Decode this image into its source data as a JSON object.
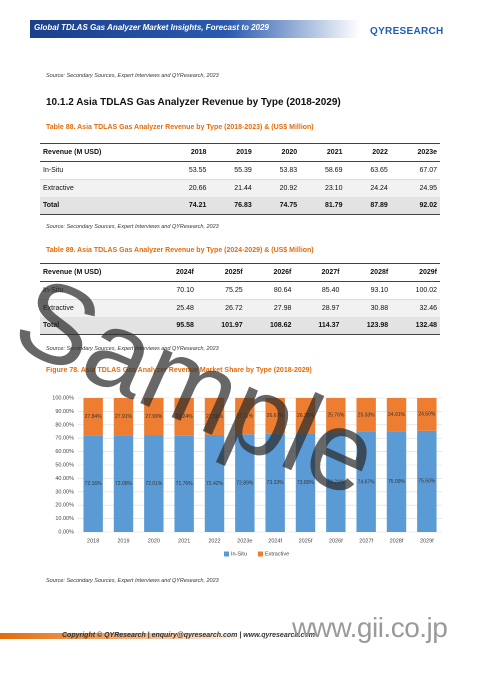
{
  "header": {
    "title": "Global TDLAS Gas Analyzer Market Insights, Forecast to 2029",
    "logo": "QYRESEARCH"
  },
  "sources": [
    "Source: Secondary Sources, Expert Interviews and QYResearch, 2023",
    "Source: Secondary Sources, Expert Interviews and QYResearch, 2023",
    "Source: Secondary Sources, Expert Interviews and QYResearch, 2023",
    "Source: Secondary Sources, Expert Interviews and QYResearch, 2023"
  ],
  "section_heading": "10.1.2  Asia TDLAS Gas Analyzer Revenue by Type (2018-2029)",
  "tables": [
    {
      "caption": "Table 88.   Asia TDLAS Gas Analyzer Revenue by Type (2018-2023) & (US$ Million)",
      "header": [
        "Revenue (M USD)",
        "2018",
        "2019",
        "2020",
        "2021",
        "2022",
        "2023e"
      ],
      "rows": [
        [
          "In-Situ",
          "53.55",
          "55.39",
          "53.83",
          "58.69",
          "63.65",
          "67.07"
        ],
        [
          "Extractive",
          "20.66",
          "21.44",
          "20.92",
          "23.10",
          "24.24",
          "24.95"
        ],
        [
          "Total",
          "74.21",
          "76.83",
          "74.75",
          "81.79",
          "87.89",
          "92.02"
        ]
      ]
    },
    {
      "caption": "Table 89.   Asia TDLAS Gas Analyzer Revenue by Type (2024-2029) & (US$ Million)",
      "header": [
        "Revenue (M USD)",
        "2024f",
        "2025f",
        "2026f",
        "2027f",
        "2028f",
        "2029f"
      ],
      "rows": [
        [
          "In-Situ",
          "70.10",
          "75.25",
          "80.64",
          "85.40",
          "93.10",
          "100.02"
        ],
        [
          "Extractive",
          "25.48",
          "26.72",
          "27.98",
          "28.97",
          "30.88",
          "32.46"
        ],
        [
          "Total",
          "95.58",
          "101.97",
          "108.62",
          "114.37",
          "123.98",
          "132.48"
        ]
      ]
    }
  ],
  "chart_data": {
    "type": "stacked_bar",
    "title": "Figure 78.   Asia TDLAS Gas Analyzer Revenue Market Share by Type (2018-2029)",
    "categories": [
      "2018",
      "2019",
      "2020",
      "2021",
      "2022",
      "2023e",
      "2024f",
      "2025f",
      "2026f",
      "2027f",
      "2028f",
      "2029f"
    ],
    "series": [
      {
        "name": "In-Situ",
        "color": "#5b9bd5",
        "values": [
          72.16,
          72.09,
          72.01,
          71.76,
          72.42,
          72.89,
          73.33,
          73.8,
          74.24,
          74.67,
          75.09,
          75.5
        ],
        "value_labels": [
          "72.16%",
          "72.09%",
          "72.01%",
          "71.76%",
          "72.42%",
          "72.89%",
          "73.33%",
          "73.80%",
          "74.24%",
          "74.67%",
          "75.09%",
          "75.50%"
        ]
      },
      {
        "name": "Extractive",
        "color": "#ed7d31",
        "values": [
          27.84,
          27.91,
          27.99,
          28.24,
          27.58,
          27.11,
          26.67,
          26.2,
          25.76,
          25.33,
          24.91,
          24.5
        ],
        "value_labels": [
          "27.84%",
          "27.91%",
          "27.99%",
          "28.24%",
          "27.58%",
          "27.11%",
          "26.67%",
          "26.20%",
          "25.76%",
          "25.33%",
          "24.91%",
          "24.50%"
        ]
      }
    ],
    "ylim": [
      0,
      100
    ],
    "yticks": [
      {
        "value": 0,
        "label": "0.00%"
      },
      {
        "value": 10,
        "label": "10.00%"
      },
      {
        "value": 20,
        "label": "20.00%"
      },
      {
        "value": 30,
        "label": "30.00%"
      },
      {
        "value": 40,
        "label": "40.00%"
      },
      {
        "value": 50,
        "label": "50.00%"
      },
      {
        "value": 60,
        "label": "60.00%"
      },
      {
        "value": 70,
        "label": "70.00%"
      },
      {
        "value": 80,
        "label": "80.00%"
      },
      {
        "value": 90,
        "label": "90.00%"
      },
      {
        "value": 100,
        "label": "100.00%"
      }
    ],
    "grid": true,
    "legend": "bottom"
  },
  "footer": {
    "copyright": "Copyright © QYResearch | enquiry@qyresearch.com | www.qyresearch.com"
  },
  "watermarks": {
    "sample": "Sample",
    "site": "www.gii.co.jp"
  }
}
